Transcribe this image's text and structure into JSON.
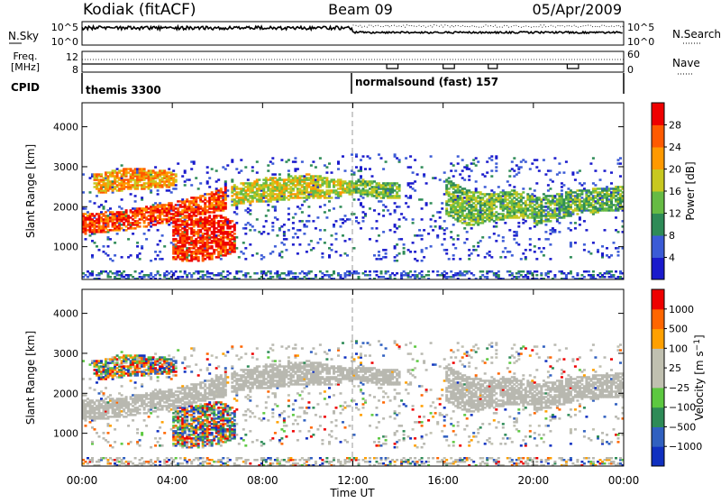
{
  "header": {
    "station": "Kodiak (fitACF)",
    "beam": "Beam 09",
    "date": "05/Apr/2009"
  },
  "top_panels": {
    "nsky_label": "N.Sky",
    "nsky_ticks": [
      "10^5",
      "10^0"
    ],
    "nsearch_label": "N.Search",
    "nsearch_ticks": [
      "10^5",
      "10^0"
    ],
    "freq_label_1": "Freq.",
    "freq_label_2": "[MHz]",
    "freq_ticks": [
      "12",
      "8"
    ],
    "nave_label": "Nave",
    "nave_ticks": [
      "60",
      "0"
    ],
    "cpid_label": "CPID",
    "cpid_segments": [
      {
        "name": "themis 3300",
        "start_hour": 0
      },
      {
        "name": "normalsound (fast) 157",
        "start_hour": 12
      }
    ]
  },
  "colors": {
    "power_scale": [
      "#1a1acc",
      "#3b5bd6",
      "#2e8b57",
      "#66bb44",
      "#c8c820",
      "#ff9900",
      "#ff5a00",
      "#ee0000"
    ],
    "velocity_scale": [
      "#1030c0",
      "#3060c0",
      "#2e8b57",
      "#5cc840",
      "#c0c0b0",
      "#c0c0b0",
      "#ffa000",
      "#ff6600",
      "#ee0000"
    ],
    "ground_scatter": "#b8b8b0"
  },
  "chart_data": [
    {
      "type": "heatmap",
      "name": "Power",
      "ylabel": "Slant Range [km]",
      "xlabel": "Time UT",
      "xlim_hours": [
        0,
        24
      ],
      "ylim_km": [
        180,
        4600
      ],
      "y_ticks": [
        1000,
        2000,
        3000,
        4000
      ],
      "colorbar_label": "Power [dB]",
      "colorbar_ticks": [
        28,
        24,
        20,
        16,
        12,
        8,
        4
      ],
      "colorbar_range": [
        0,
        32
      ]
    },
    {
      "type": "heatmap",
      "name": "Velocity",
      "ylabel": "Slant Range [km]",
      "xlabel": "Time UT",
      "xlim_hours": [
        0,
        24
      ],
      "ylim_km": [
        180,
        4600
      ],
      "y_ticks": [
        1000,
        2000,
        3000,
        4000
      ],
      "colorbar_label": "Velocity [m s^-1]",
      "colorbar_ticks": [
        "1000",
        "500",
        "100",
        "25",
        "−25",
        "−100",
        "−500",
        "−1000"
      ]
    }
  ],
  "x_ticks": [
    "00:00",
    "04:00",
    "08:00",
    "12:00",
    "16:00",
    "20:00",
    "00:00"
  ],
  "x_label": "Time UT"
}
